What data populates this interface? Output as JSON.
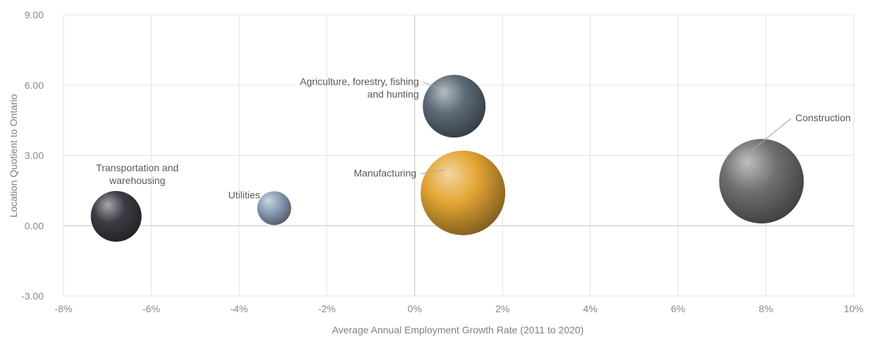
{
  "chart_data": {
    "type": "bubble",
    "xlabel": "Average Annual Employment Growth Rate (2011 to 2020)",
    "ylabel": "Location Quotient to Ontario",
    "xlim": [
      -8,
      10
    ],
    "ylim": [
      -3,
      9
    ],
    "x_ticks": [
      "-8%",
      "-6%",
      "-4%",
      "-2%",
      "0%",
      "2%",
      "4%",
      "6%",
      "8%",
      "10%"
    ],
    "y_ticks": [
      "-3.00",
      "0.00",
      "3.00",
      "6.00",
      "9.00"
    ],
    "grid": true,
    "points": [
      {
        "label_lines": [
          "Agriculture, forestry, fishing",
          "and hunting"
        ],
        "x": 0.9,
        "y": 5.1,
        "size": 0.55,
        "color": "#5d6b78"
      },
      {
        "label_lines": [
          "Construction"
        ],
        "x": 7.9,
        "y": 1.9,
        "size": 1.0,
        "color": "#707070"
      },
      {
        "label_lines": [
          "Manufacturing"
        ],
        "x": 1.1,
        "y": 1.4,
        "size": 1.0,
        "color": "#e3a534"
      },
      {
        "label_lines": [
          "Transportation and",
          "warehousing"
        ],
        "x": -6.8,
        "y": 0.4,
        "size": 0.36,
        "color": "#3c3c44"
      },
      {
        "label_lines": [
          "Utilities"
        ],
        "x": -3.2,
        "y": 0.75,
        "size": 0.16,
        "color": "#8ea1b8"
      }
    ]
  }
}
